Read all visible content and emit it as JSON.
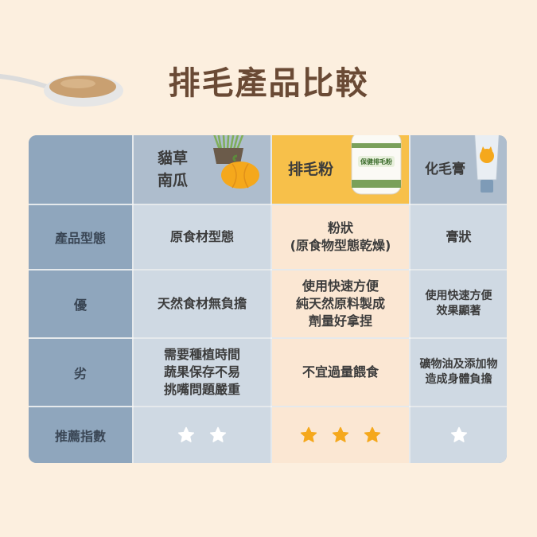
{
  "title": "排毛產品比較",
  "headers": [
    {
      "lines": [
        "貓草",
        "南瓜"
      ]
    },
    {
      "lines": [
        "排毛粉"
      ],
      "jar_label": "保健排毛粉"
    },
    {
      "lines": [
        "化毛膏"
      ]
    }
  ],
  "rows": [
    {
      "label": "產品型態",
      "cells": [
        [
          "原食材型態"
        ],
        [
          "粉狀",
          "(原食物型態乾燥)"
        ],
        [
          "膏狀"
        ]
      ]
    },
    {
      "label": "優",
      "cells": [
        [
          "天然食材無負擔"
        ],
        [
          "使用快速方便",
          "純天然原料製成",
          "劑量好拿捏"
        ],
        [
          "使用快速方便",
          "效果顯著"
        ]
      ]
    },
    {
      "label": "劣",
      "cells": [
        [
          "需要種植時間",
          "蔬果保存不易",
          "挑嘴問題嚴重"
        ],
        [
          "不宜過量餵食"
        ],
        [
          "礦物油及添加物",
          "造成身體負擔"
        ]
      ]
    }
  ],
  "rating": {
    "label": "推薦指數",
    "stars": [
      2,
      3,
      1
    ]
  },
  "colors": {
    "star_white": "#ffffff",
    "star_gold": "#f5a81c",
    "accent": "#f7c04a"
  }
}
